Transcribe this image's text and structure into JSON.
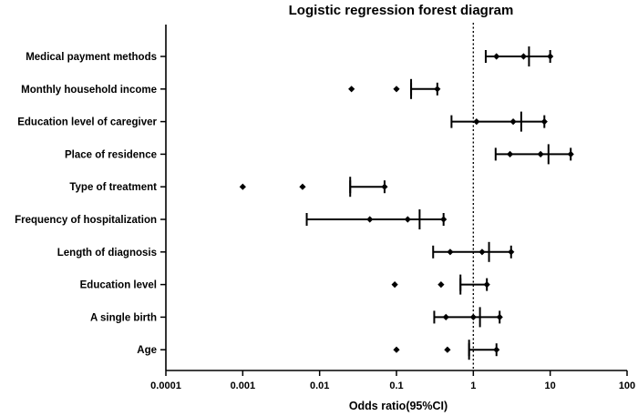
{
  "chart_data": {
    "type": "forest",
    "title": "Logistic regression forest diagram",
    "xlabel": "Odds ratio(95%CI)",
    "ylabel": "",
    "x_scale": "log",
    "xlim": [
      0.0001,
      100
    ],
    "x_ticks": [
      "0.0001",
      "0.001",
      "0.01",
      "0.1",
      "1",
      "10",
      "100"
    ],
    "x_tick_values": [
      0.0001,
      0.001,
      0.01,
      0.1,
      1,
      10,
      100
    ],
    "reference_line": 1,
    "grid": false,
    "rows": [
      {
        "label": "Medical payment methods",
        "markers": [
          2.0,
          4.5
        ],
        "or": 5.3,
        "ci": [
          1.45,
          10.0
        ]
      },
      {
        "label": "Monthly household income",
        "markers": [
          0.026,
          0.1
        ],
        "or": 0.155,
        "ci": [
          0.155,
          0.34
        ]
      },
      {
        "label": "Education level of caregiver",
        "markers": [
          1.1,
          3.3
        ],
        "or": 4.2,
        "ci": [
          0.52,
          8.4
        ]
      },
      {
        "label": "Place of residence",
        "markers": [
          3.0,
          7.5
        ],
        "or": 9.5,
        "ci": [
          1.95,
          18.5
        ]
      },
      {
        "label": "Type of treatment",
        "markers": [
          0.001,
          0.006
        ],
        "or": 0.025,
        "ci": [
          0.025,
          0.07
        ]
      },
      {
        "label": "Frequency of hospitalization",
        "markers": [
          0.045,
          0.14
        ],
        "or": 0.2,
        "ci": [
          0.0068,
          0.41
        ]
      },
      {
        "label": "Length of diagnosis",
        "markers": [
          0.5,
          1.3
        ],
        "or": 1.6,
        "ci": [
          0.3,
          3.1
        ]
      },
      {
        "label": "Education level",
        "markers": [
          0.095,
          0.38
        ],
        "or": 0.68,
        "ci": [
          0.68,
          1.5
        ]
      },
      {
        "label": "A single birth",
        "markers": [
          0.44,
          1.0
        ],
        "or": 1.22,
        "ci": [
          0.31,
          2.2
        ]
      },
      {
        "label": "Age",
        "markers": [
          0.1,
          0.46
        ],
        "or": 0.88,
        "ci": [
          0.88,
          2.0
        ]
      }
    ],
    "colors": {
      "marks": "#000000",
      "axis": "#000000",
      "background": "#ffffff"
    }
  }
}
